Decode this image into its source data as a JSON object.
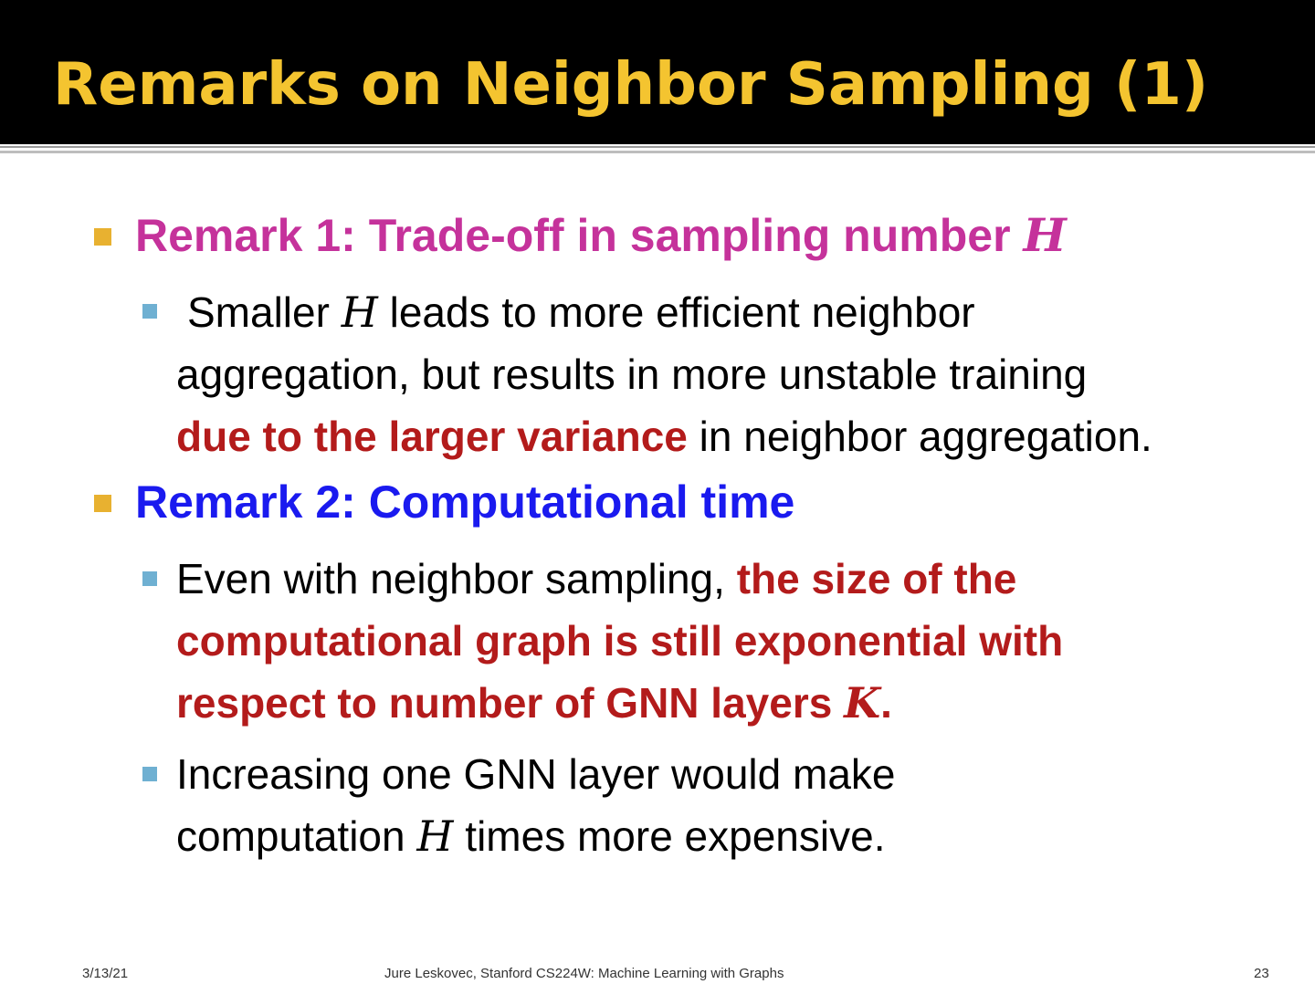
{
  "slide": {
    "title": "Remarks on Neighbor Sampling (1)",
    "remark1": {
      "label": "Remark 1: Trade-off in sampling number",
      "var": "H",
      "point1": {
        "line1_a": "Smaller",
        "var": "H",
        "line1_b": "leads to more efficient neighbor",
        "line2": "aggregation, but results in more unstable training",
        "line3_red": "due to the larger variance",
        "line3_rest": "in neighbor aggregation."
      }
    },
    "remark2": {
      "label": "Remark 2: Computational time",
      "point1": {
        "line1_a": "Even with neighbor sampling,",
        "line1_red": "the size of the",
        "line2_red": "computational graph is still exponential with",
        "line3_red": "respect to number of GNN layers",
        "var": "K",
        "line3_end": "."
      },
      "point2": {
        "line1": "Increasing one GNN layer would make",
        "line2_a": "computation",
        "var": "H",
        "line2_b": "times more expensive."
      }
    }
  },
  "footer": {
    "date": "3/13/21",
    "citation": "Jure Leskovec, Stanford CS224W: Machine Learning with Graphs",
    "page": "23"
  },
  "colors": {
    "title": "#f4c430",
    "remark1": "#c5329b",
    "remark2": "#1a1aef",
    "emphasis": "#b31b1b",
    "bullet_l1": "#e8b130",
    "bullet_l2": "#6fb0d2"
  }
}
